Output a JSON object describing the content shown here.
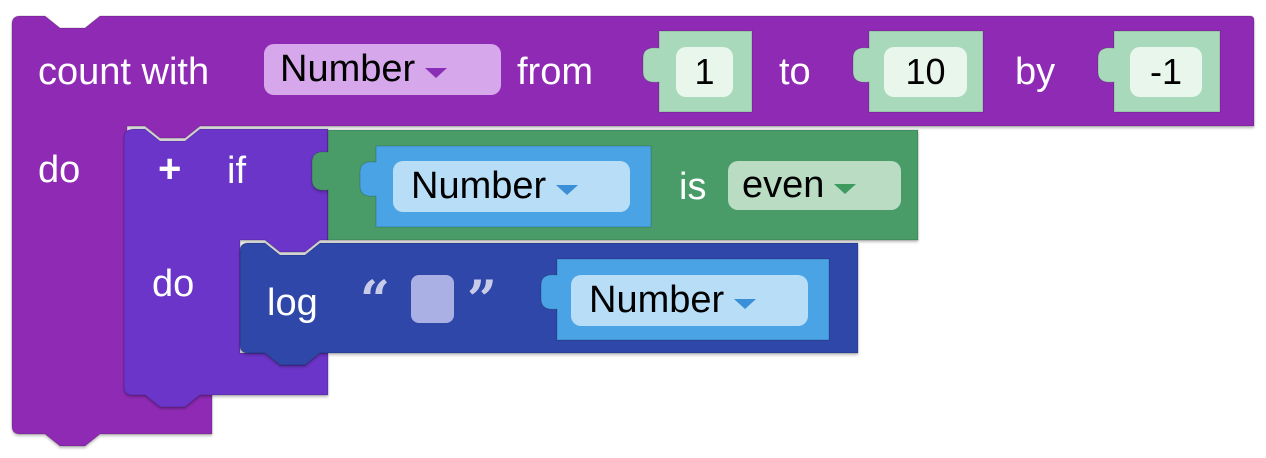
{
  "colors": {
    "loop_block": "#8f2bb5",
    "if_block": "#6a35c8",
    "condition_block": "#4a9c68",
    "log_block": "#2d47a8",
    "variable_block": "#4aa3e4",
    "number_block": "#a7d9ba"
  },
  "count_block": {
    "label_count_with": "count with",
    "variable": "Number",
    "label_from": "from",
    "from_value": "1",
    "label_to": "to",
    "to_value": "10",
    "label_by": "by",
    "by_value": "-1",
    "label_do": "do"
  },
  "if_block": {
    "plus": "+",
    "label_if": "if",
    "label_do": "do",
    "condition": {
      "variable": "Number",
      "label_is": "is",
      "property": "even"
    }
  },
  "log_block": {
    "label_log": "log",
    "open_quote": "“",
    "close_quote": "”",
    "variable": "Number"
  }
}
